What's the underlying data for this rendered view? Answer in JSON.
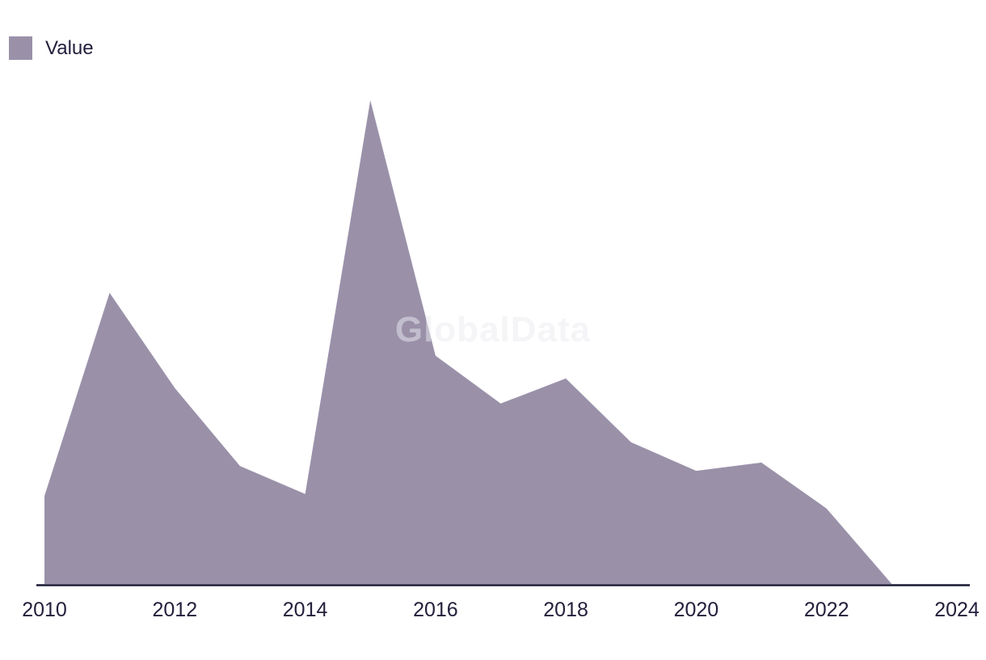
{
  "legend": {
    "label": "Value"
  },
  "watermark": "GlobalData",
  "colors": {
    "area_fill": "#9A91A9",
    "axis_line": "#1A1832",
    "tick_text": "#23203C",
    "legend_text": "#23203C"
  },
  "chart_data": {
    "type": "area",
    "title": "",
    "xlabel": "",
    "ylabel": "",
    "xlim": [
      2010,
      2024
    ],
    "ylim": [
      0,
      100
    ],
    "grid": false,
    "y_axis_visible": false,
    "legend_position": "top-left",
    "x_ticks": [
      2010,
      2012,
      2014,
      2016,
      2018,
      2020,
      2022,
      2024
    ],
    "series": [
      {
        "name": "Value",
        "x": [
          2010,
          2011,
          2012,
          2013,
          2014,
          2015,
          2016,
          2017,
          2018,
          2019,
          2020,
          2021,
          2022,
          2023
        ],
        "values": [
          18.2,
          60.2,
          40.5,
          24.4,
          18.6,
          100,
          47.2,
          37.3,
          42.5,
          29.3,
          23.4,
          25.1,
          15.6,
          0
        ]
      }
    ]
  }
}
